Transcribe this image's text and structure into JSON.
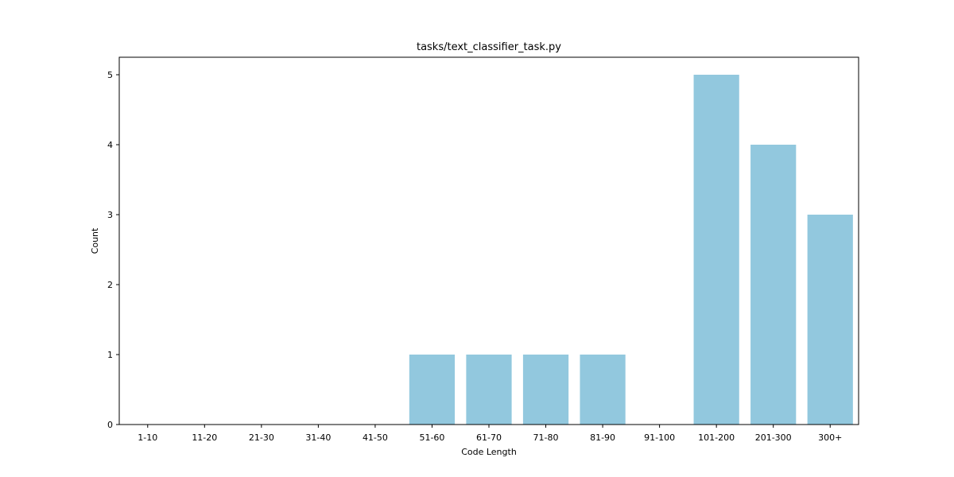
{
  "chart_data": {
    "type": "bar",
    "title": "tasks/text_classifier_task.py",
    "xlabel": "Code Length",
    "ylabel": "Count",
    "categories": [
      "1-10",
      "11-20",
      "21-30",
      "31-40",
      "41-50",
      "51-60",
      "61-70",
      "71-80",
      "81-90",
      "91-100",
      "101-200",
      "201-300",
      "300+"
    ],
    "values": [
      0,
      0,
      0,
      0,
      0,
      1,
      1,
      1,
      1,
      0,
      5,
      4,
      3
    ],
    "yticks": [
      "0",
      "1",
      "2",
      "3",
      "4",
      "5"
    ],
    "ylim": [
      0,
      5.25
    ],
    "bar_color": "#92c8de",
    "grid": false,
    "legend": "none"
  }
}
